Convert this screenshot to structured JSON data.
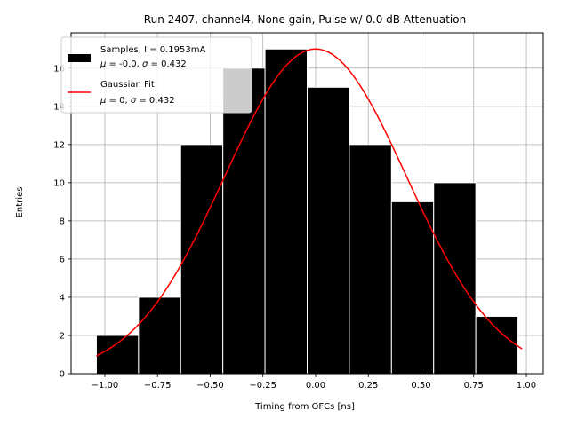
{
  "chart_data": {
    "type": "bar",
    "title": "Run 2407, channel4, None gain, Pulse w/ 0.0 dB Attenuation",
    "xlabel": "Timing from OFCs [ns]",
    "ylabel": "Entries",
    "xlim": [
      -1.16,
      1.08
    ],
    "ylim": [
      0,
      17.85
    ],
    "x_ticks": [
      -1.0,
      -0.75,
      -0.5,
      -0.25,
      0.0,
      0.25,
      0.5,
      0.75,
      1.0
    ],
    "x_tick_labels": [
      "−1.00",
      "−0.75",
      "−0.50",
      "−0.25",
      "0.00",
      "0.25",
      "0.50",
      "0.75",
      "1.00"
    ],
    "y_ticks": [
      0,
      2,
      4,
      6,
      8,
      10,
      12,
      14,
      16
    ],
    "y_tick_labels": [
      "0",
      "2",
      "4",
      "6",
      "8",
      "10",
      "12",
      "14",
      "16"
    ],
    "grid": true,
    "legend_position": "top-left",
    "series": [
      {
        "name": "Samples, I = 0.1953mA",
        "stats": "μ = -0.0, σ = 0.432",
        "kind": "histogram",
        "color": "#000000",
        "bin_edges": [
          -1.04,
          -0.84,
          -0.64,
          -0.44,
          -0.24,
          -0.04,
          0.16,
          0.36,
          0.56,
          0.76,
          0.96
        ],
        "values": [
          2,
          4,
          12,
          16,
          17,
          15,
          12,
          9,
          10,
          3
        ]
      },
      {
        "name": "Gaussian Fit",
        "stats": "μ = 0, σ = 0.432",
        "kind": "line",
        "color": "#ff0000",
        "mu": 0,
        "sigma": 0.432,
        "amplitude": 17,
        "x_range": [
          -1.04,
          0.98
        ]
      }
    ]
  }
}
